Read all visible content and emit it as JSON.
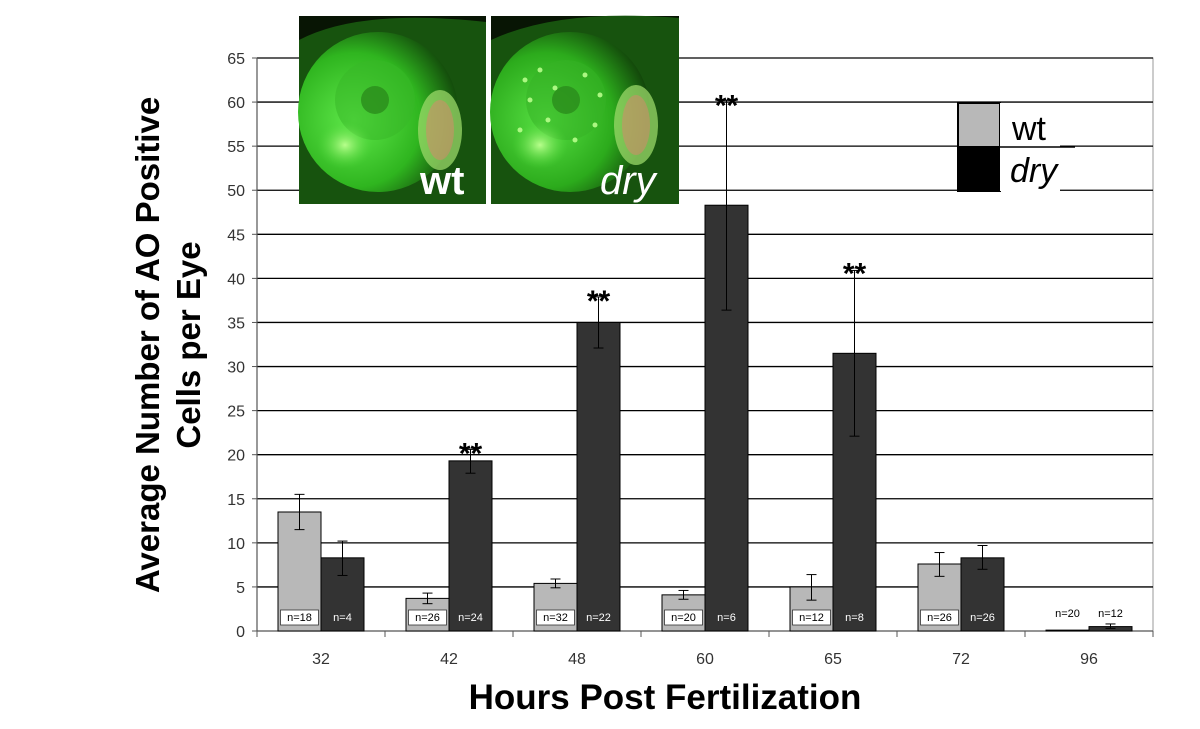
{
  "chart_data": {
    "type": "bar",
    "title": "",
    "xlabel": "Hours Post Fertilization",
    "ylabel_lines": [
      "Average Number of AO Positive",
      "Cells per Eye"
    ],
    "categories": [
      "32",
      "42",
      "48",
      "60",
      "65",
      "72",
      "96"
    ],
    "ylim": [
      0,
      65
    ],
    "yticks": [
      "0",
      "5",
      "10",
      "15",
      "20",
      "25",
      "30",
      "35",
      "40",
      "45",
      "50",
      "55",
      "60",
      "65"
    ],
    "grid": true,
    "legend_position": "top-right",
    "series": [
      {
        "name": "wt",
        "color": "#b8b8b8",
        "values": [
          13.5,
          3.7,
          5.4,
          4.1,
          5.0,
          7.6,
          0.1
        ],
        "err_low": [
          11.5,
          3.1,
          4.9,
          3.6,
          3.5,
          6.2,
          0.1
        ],
        "err_high": [
          15.5,
          4.3,
          5.9,
          4.6,
          6.4,
          8.9,
          0.1
        ],
        "n_labels": [
          "n=18",
          "n=26",
          "n=32",
          "n=20",
          "n=12",
          "n=26",
          "n=20"
        ]
      },
      {
        "name": "dry",
        "color": "#333333",
        "values": [
          8.3,
          19.3,
          35.0,
          48.3,
          31.5,
          8.3,
          0.5
        ],
        "err_low": [
          6.3,
          17.9,
          32.1,
          36.4,
          22.1,
          7.0,
          0.3
        ],
        "err_high": [
          10.2,
          20.6,
          37.9,
          60.2,
          40.9,
          9.7,
          0.8
        ],
        "n_labels": [
          "n=4",
          "n=24",
          "n=22",
          "n=6",
          "n=8",
          "n=26",
          "n=12"
        ]
      }
    ],
    "significance": [
      {
        "category": "42",
        "label": "**",
        "y": 21.5
      },
      {
        "category": "48",
        "label": "**",
        "y": 38.8
      },
      {
        "category": "60",
        "label": "**",
        "y": 61.0
      },
      {
        "category": "65",
        "label": "**",
        "y": 41.9
      }
    ]
  },
  "inset": {
    "panels": [
      {
        "label": "wt",
        "italic": false
      },
      {
        "label": "dry",
        "italic": true
      }
    ]
  },
  "colors": {
    "wt": "#b8b8b8",
    "dry": "#333333",
    "grid": "#000000",
    "fluorescence": "#3cdc2a"
  }
}
